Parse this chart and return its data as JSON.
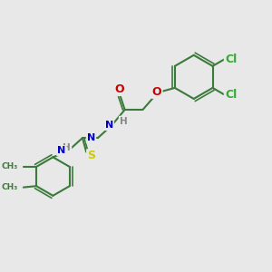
{
  "background_color": "#e8e8e8",
  "bond_color": "#3a7a3a",
  "atom_colors": {
    "N": "#0000cc",
    "O": "#cc0000",
    "S": "#cccc00",
    "Cl": "#33aa33",
    "C_ring": "#3a7a3a",
    "H": "#888888"
  },
  "font_size": 9,
  "fig_width": 3.0,
  "fig_height": 3.0,
  "dpi": 100
}
